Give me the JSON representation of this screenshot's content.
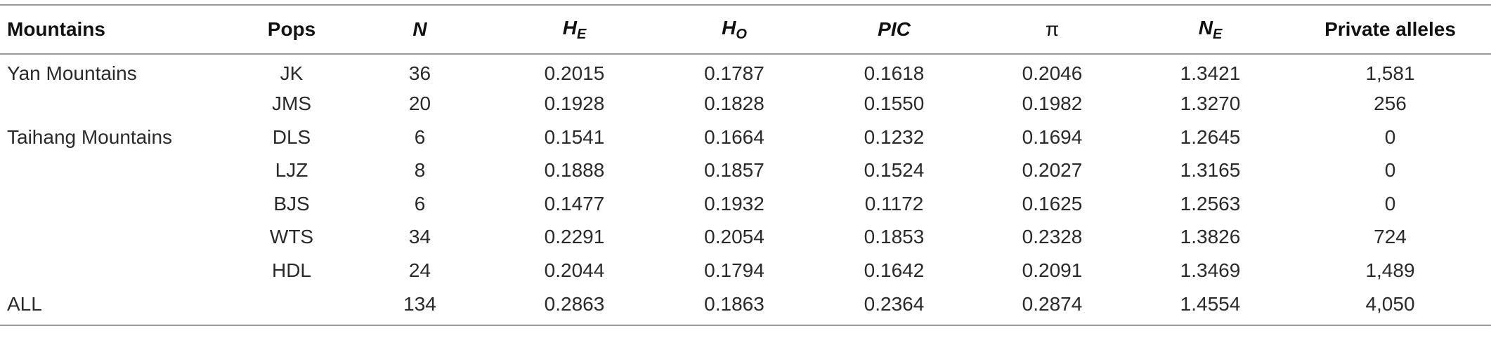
{
  "table": {
    "headers": {
      "mountains": "Mountains",
      "pops": "Pops",
      "n": "N",
      "he_main": "H",
      "he_sub": "E",
      "ho_main": "H",
      "ho_sub": "O",
      "pic": "PIC",
      "pi": "π",
      "ne_main": "N",
      "ne_sub": "E",
      "private": "Private alleles"
    },
    "rows": [
      {
        "mountain": "Yan Mountains",
        "pop": "JK",
        "n": "36",
        "he": "0.2015",
        "ho": "0.1787",
        "pic": "0.1618",
        "pi": "0.2046",
        "ne": "1.3421",
        "private": "1,581"
      },
      {
        "mountain": "",
        "pop": "JMS",
        "n": "20",
        "he": "0.1928",
        "ho": "0.1828",
        "pic": "0.1550",
        "pi": "0.1982",
        "ne": "1.3270",
        "private": "256"
      },
      {
        "mountain": "Taihang Mountains",
        "pop": "DLS",
        "n": "6",
        "he": "0.1541",
        "ho": "0.1664",
        "pic": "0.1232",
        "pi": "0.1694",
        "ne": "1.2645",
        "private": "0"
      },
      {
        "mountain": "",
        "pop": "LJZ",
        "n": "8",
        "he": "0.1888",
        "ho": "0.1857",
        "pic": "0.1524",
        "pi": "0.2027",
        "ne": "1.3165",
        "private": "0"
      },
      {
        "mountain": "",
        "pop": "BJS",
        "n": "6",
        "he": "0.1477",
        "ho": "0.1932",
        "pic": "0.1172",
        "pi": "0.1625",
        "ne": "1.2563",
        "private": "0"
      },
      {
        "mountain": "",
        "pop": "WTS",
        "n": "34",
        "he": "0.2291",
        "ho": "0.2054",
        "pic": "0.1853",
        "pi": "0.2328",
        "ne": "1.3826",
        "private": "724"
      },
      {
        "mountain": "",
        "pop": "HDL",
        "n": "24",
        "he": "0.2044",
        "ho": "0.1794",
        "pic": "0.1642",
        "pi": "0.2091",
        "ne": "1.3469",
        "private": "1,489"
      },
      {
        "mountain": "ALL",
        "pop": "",
        "n": "134",
        "he": "0.2863",
        "ho": "0.1863",
        "pic": "0.2364",
        "pi": "0.2874",
        "ne": "1.4554",
        "private": "4,050"
      }
    ]
  }
}
